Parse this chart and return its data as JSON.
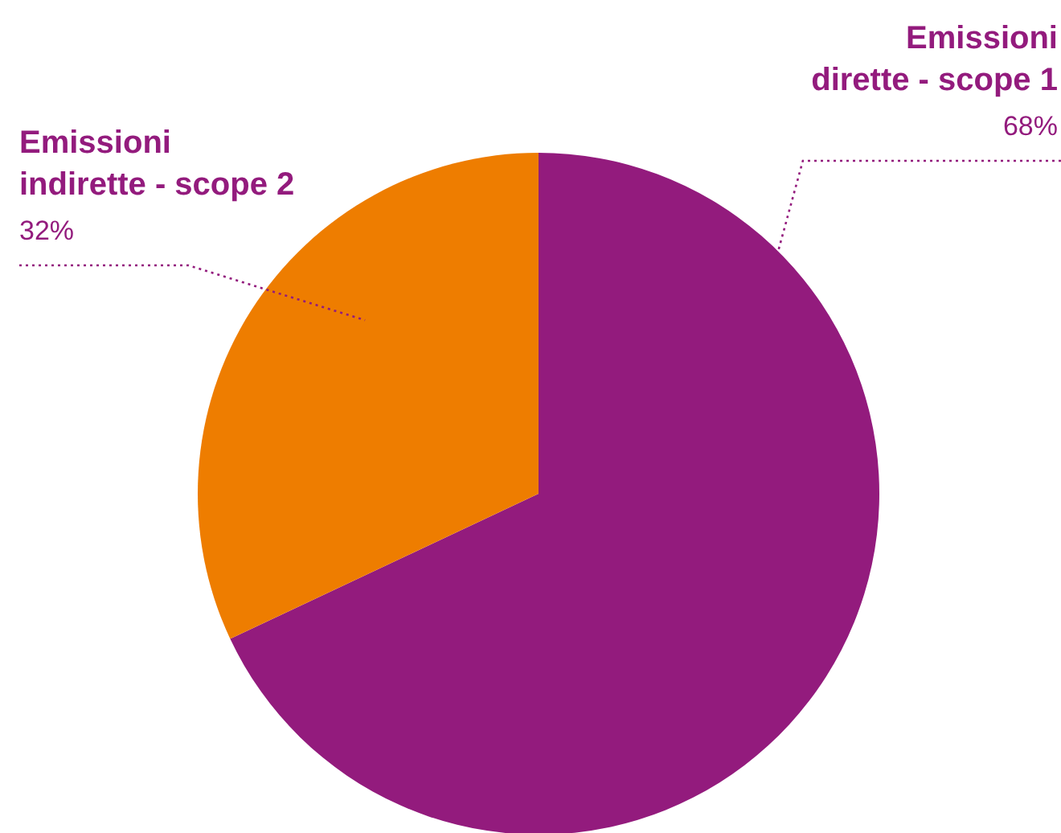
{
  "chart_data": {
    "type": "pie",
    "categories": [
      "Emissioni dirette - scope 1",
      "Emissioni indirette - scope 2"
    ],
    "values": [
      68,
      32
    ],
    "colors": [
      "#931b7d",
      "#ee7d00"
    ],
    "value_labels": [
      "68%",
      "32%"
    ]
  }
}
